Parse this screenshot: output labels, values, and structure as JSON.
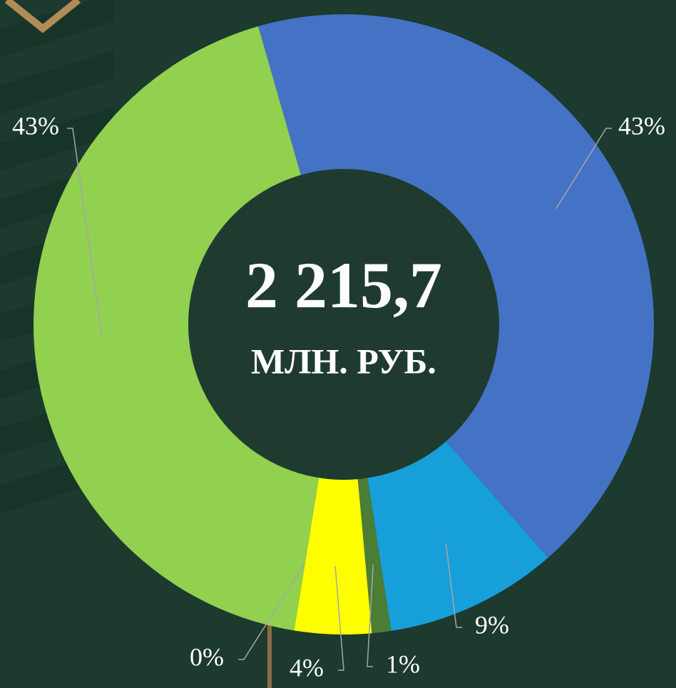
{
  "chart_data": {
    "type": "donut",
    "center_value": "2 215,7",
    "center_unit": "МЛН. РУБ.",
    "values": [
      43,
      9,
      1,
      4,
      0,
      43
    ],
    "value_labels": [
      "43%",
      "9%",
      "1%",
      "4%",
      "0%",
      "43%"
    ],
    "colors": [
      "#4472c4",
      "#169fd9",
      "#4b7d35",
      "#ffff00",
      "#7f7f7f",
      "#92d050"
    ]
  }
}
